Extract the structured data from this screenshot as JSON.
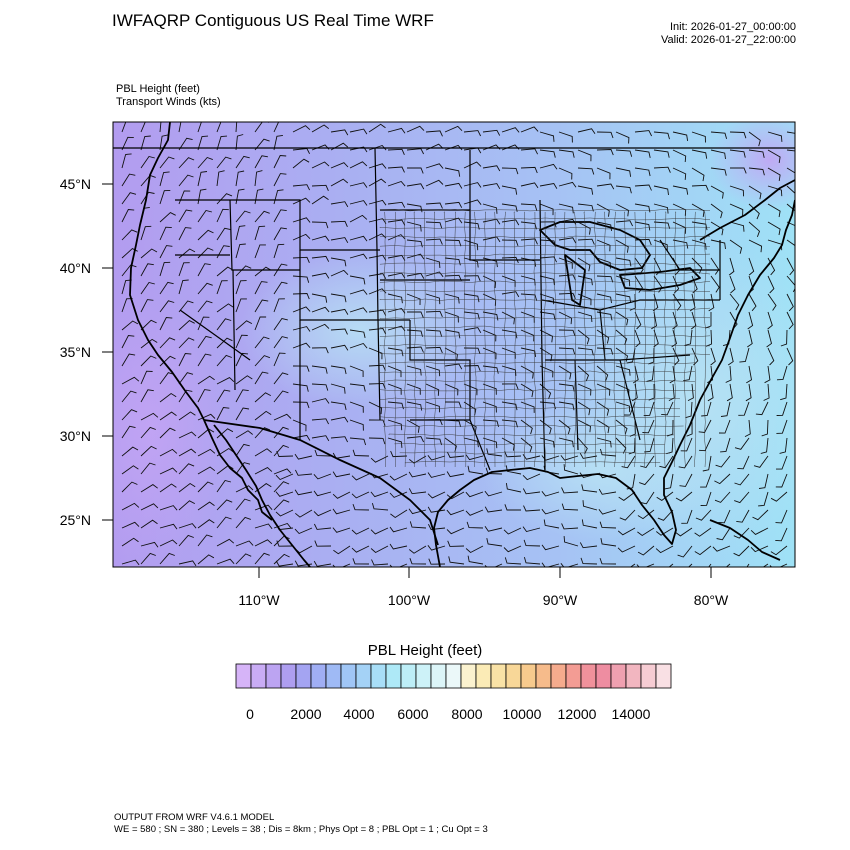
{
  "title": "IWFAQRP Contiguous US Real Time WRF",
  "init": "Init: 2026-01-27_00:00:00",
  "valid": "Valid: 2026-01-27_22:00:00",
  "field1": "PBL Height   (feet)",
  "field2": "Transport Winds   (kts)",
  "lat_labels": [
    "45°N",
    "40°N",
    "35°N",
    "30°N",
    "25°N"
  ],
  "lon_labels": [
    "110°W",
    "100°W",
    "90°W",
    "80°W"
  ],
  "colorbar": {
    "title": "PBL Height  (feet)",
    "ticks": [
      "0",
      "2000",
      "4000",
      "6000",
      "8000",
      "10000",
      "12000",
      "14000"
    ],
    "colors": [
      "#d6b4f8",
      "#c9acf5",
      "#bca4f2",
      "#ae9ef0",
      "#a4a4f2",
      "#a0aef4",
      "#9fbaf5",
      "#a0c6f6",
      "#a4d2f6",
      "#a8def7",
      "#aee9f7",
      "#bdeef7",
      "#cdf2f8",
      "#dcf5f8",
      "#ebf8f9",
      "#fbf2cf",
      "#fbebb6",
      "#f9e2a6",
      "#f8d798",
      "#f7ca8d",
      "#f6bb8b",
      "#f5ab8d",
      "#f39c94",
      "#f0919b",
      "#ee8da1",
      "#efa0b0",
      "#f2b6c0",
      "#f6ccd3",
      "#f9e0e4"
    ]
  },
  "footer1": "OUTPUT FROM WRF V4.6.1 MODEL",
  "footer2": "WE = 580 ; SN = 380 ; Levels = 38 ; Dis = 8km ; Phys Opt = 8 ; PBL Opt = 1 ; Cu Opt = 3"
}
